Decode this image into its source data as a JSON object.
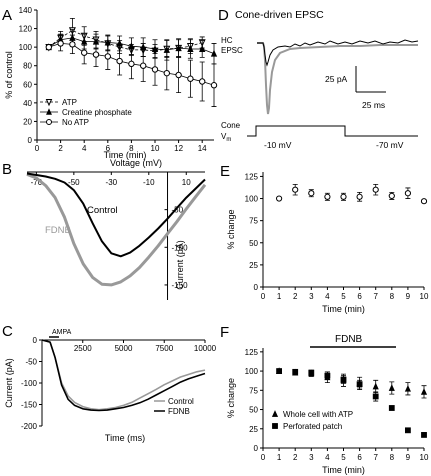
{
  "panels": {
    "A": {
      "letter": "A",
      "chart_data": {
        "type": "line",
        "xlabel": "Time (min)",
        "ylabel": "% of control",
        "xlim": [
          0,
          15
        ],
        "ylim": [
          0,
          140
        ],
        "xticks": [
          "0",
          "2",
          "4",
          "6",
          "8",
          "10",
          "12",
          "14"
        ],
        "yticks": [
          "0",
          "20",
          "40",
          "60",
          "80",
          "100",
          "120",
          "140"
        ],
        "legend_position": "bottom-left",
        "series": [
          {
            "name": "ATP",
            "marker": "triangle-down-open",
            "line": "dashed",
            "x": [
              1,
              2,
              3,
              4,
              5,
              6,
              7,
              8,
              9,
              10,
              11,
              12,
              13,
              14
            ],
            "y": [
              100,
              110,
              118,
              112,
              108,
              104,
              100,
              97,
              97,
              96,
              98,
              99,
              101,
              105
            ],
            "err": [
              2,
              7,
              13,
              10,
              9,
              8,
              7,
              6,
              7,
              7,
              9,
              9,
              8,
              6
            ]
          },
          {
            "name": "Creatine phosphate",
            "marker": "triangle-up-filled",
            "line": "solid",
            "x": [
              1,
              2,
              3,
              4,
              5,
              6,
              7,
              8,
              9,
              10,
              11,
              12,
              13,
              14,
              15
            ],
            "y": [
              100,
              108,
              110,
              106,
              106,
              105,
              104,
              101,
              100,
              98,
              97,
              99,
              98,
              98,
              93
            ],
            "err": [
              2,
              6,
              9,
              8,
              8,
              8,
              8,
              9,
              10,
              10,
              11,
              10,
              10,
              9,
              11
            ]
          },
          {
            "name": "No ATP",
            "marker": "circle-open",
            "line": "solid",
            "x": [
              1,
              2,
              3,
              4,
              5,
              6,
              7,
              8,
              9,
              10,
              11,
              12,
              13,
              14,
              15
            ],
            "y": [
              100,
              104,
              103,
              94,
              92,
              90,
              85,
              82,
              80,
              76,
              72,
              70,
              66,
              63,
              59
            ],
            "err": [
              2,
              8,
              10,
              12,
              13,
              14,
              15,
              16,
              17,
              17,
              18,
              19,
              20,
              21,
              23
            ]
          }
        ]
      }
    },
    "B": {
      "letter": "B",
      "chart_data": {
        "type": "line",
        "title": "Voltage (mV)",
        "ylabel": "Current (pA)",
        "xlim": [
          -75,
          20
        ],
        "ylim": [
          -170,
          0
        ],
        "xticks": [
          "-70",
          "-50",
          "-30",
          "-10",
          "10"
        ],
        "yticks": [
          "-50",
          "-100",
          "-150"
        ],
        "series": [
          {
            "name": "Control",
            "x": [
              -75,
              -70,
              -65,
              -60,
              -55,
              -50,
              -45,
              -40,
              -35,
              -30,
              -25,
              -20,
              -15,
              -10,
              -5,
              0,
              5,
              10,
              15,
              20
            ],
            "y": [
              -2,
              -4,
              -6,
              -9,
              -14,
              -24,
              -42,
              -68,
              -92,
              -108,
              -112,
              -107,
              -98,
              -87,
              -75,
              -62,
              -48,
              -34,
              -22,
              -10
            ]
          },
          {
            "name": "FDNB",
            "x": [
              -75,
              -70,
              -65,
              -60,
              -55,
              -50,
              -45,
              -40,
              -35,
              -30,
              -25,
              -20,
              -15,
              -10,
              -5,
              0,
              5,
              10,
              15,
              20
            ],
            "y": [
              -3,
              -8,
              -18,
              -34,
              -60,
              -95,
              -122,
              -140,
              -149,
              -150,
              -146,
              -138,
              -127,
              -113,
              -98,
              -82,
              -66,
              -49,
              -33,
              -17
            ]
          }
        ]
      }
    },
    "C": {
      "letter": "C",
      "chart_data": {
        "type": "line",
        "xlabel": "Time (ms)",
        "ylabel": "Current (pA)",
        "xlim": [
          0,
          10000
        ],
        "ylim": [
          -200,
          0
        ],
        "xticks": [
          "2500",
          "5000",
          "7500",
          "10000"
        ],
        "yticks": [
          "0",
          "-50",
          "-100",
          "-150",
          "-200"
        ],
        "annotation": "AMPA",
        "legend_position": "bottom-right",
        "series": [
          {
            "name": "Control",
            "x": [
              0,
              500,
              800,
              1200,
              1600,
              2000,
              2500,
              3000,
              3500,
              4000,
              4500,
              5000,
              5500,
              6000,
              6500,
              7000,
              7500,
              8000,
              8500,
              9000,
              9500,
              10000
            ],
            "y": [
              0,
              -5,
              -40,
              -100,
              -130,
              -145,
              -155,
              -160,
              -162,
              -160,
              -157,
              -152,
              -145,
              -135,
              -125,
              -115,
              -104,
              -95,
              -86,
              -80,
              -74,
              -70
            ]
          },
          {
            "name": "FDNB",
            "x": [
              0,
              500,
              800,
              1200,
              1600,
              2000,
              2500,
              3000,
              3500,
              4000,
              4500,
              5000,
              5500,
              6000,
              6500,
              7000,
              7500,
              8000,
              8500,
              9000,
              9500,
              10000
            ],
            "y": [
              0,
              -5,
              -40,
              -105,
              -138,
              -152,
              -160,
              -163,
              -164,
              -163,
              -160,
              -157,
              -152,
              -146,
              -138,
              -128,
              -118,
              -108,
              -98,
              -90,
              -84,
              -78
            ]
          }
        ]
      }
    },
    "D": {
      "letter": "D",
      "title": "Cone-driven EPSC",
      "hc_label": "HC",
      "epsc_label": "EPSC",
      "scale_current": "25 pA",
      "scale_time": "25 ms",
      "cone_label": "Cone",
      "vm_label": "V",
      "vm_subscript": "m",
      "step_voltage": "-10 mV",
      "hold_voltage": "-70 mV"
    },
    "E": {
      "letter": "E",
      "chart_data": {
        "type": "scatter",
        "xlabel": "Time (min)",
        "ylabel": "% change",
        "xlim": [
          0,
          10
        ],
        "ylim": [
          0,
          130
        ],
        "xticks": [
          "0",
          "1",
          "2",
          "3",
          "4",
          "5",
          "6",
          "7",
          "8",
          "9",
          "10"
        ],
        "yticks": [
          "0",
          "25",
          "50",
          "75",
          "100",
          "125"
        ],
        "series": [
          {
            "name": "",
            "x": [
              1,
              2,
              3,
              4,
              5,
              6,
              7,
              8,
              9,
              10
            ],
            "y": [
              100,
              110,
              106,
              102,
              102,
              102,
              110,
              103,
              106,
              97
            ],
            "err": [
              0,
              6,
              4,
              4,
              4,
              5,
              6,
              4,
              6,
              0
            ]
          }
        ]
      }
    },
    "F": {
      "letter": "F",
      "chart_data": {
        "type": "scatter",
        "xlabel": "Time (min)",
        "ylabel": "% change",
        "xlim": [
          0,
          10
        ],
        "ylim": [
          0,
          130
        ],
        "xticks": [
          "0",
          "1",
          "2",
          "3",
          "4",
          "5",
          "6",
          "7",
          "8",
          "9",
          "10"
        ],
        "yticks": [
          "0",
          "25",
          "50",
          "75",
          "100",
          "125"
        ],
        "annotation": "FDNB",
        "bar_range": [
          3,
          8
        ],
        "legend_position": "bottom-left",
        "series": [
          {
            "name": "Whole cell with ATP",
            "marker": "triangle-up-filled",
            "x": [
              1,
              2,
              3,
              4,
              5,
              6,
              7,
              8,
              9,
              10
            ],
            "y": [
              100,
              98,
              97,
              92,
              88,
              84,
              80,
              78,
              77,
              73
            ],
            "err": [
              0,
              0,
              4,
              7,
              8,
              8,
              8,
              8,
              8,
              8
            ]
          },
          {
            "name": "Perforated patch",
            "marker": "square-filled",
            "x": [
              1,
              2,
              3,
              4,
              5,
              6,
              7,
              8,
              9,
              10
            ],
            "y": [
              100,
              99,
              98,
              94,
              89,
              83,
              67,
              52,
              23,
              17
            ],
            "err": [
              0,
              0,
              3,
              5,
              5,
              5,
              6,
              0,
              0,
              0
            ]
          }
        ]
      }
    }
  }
}
